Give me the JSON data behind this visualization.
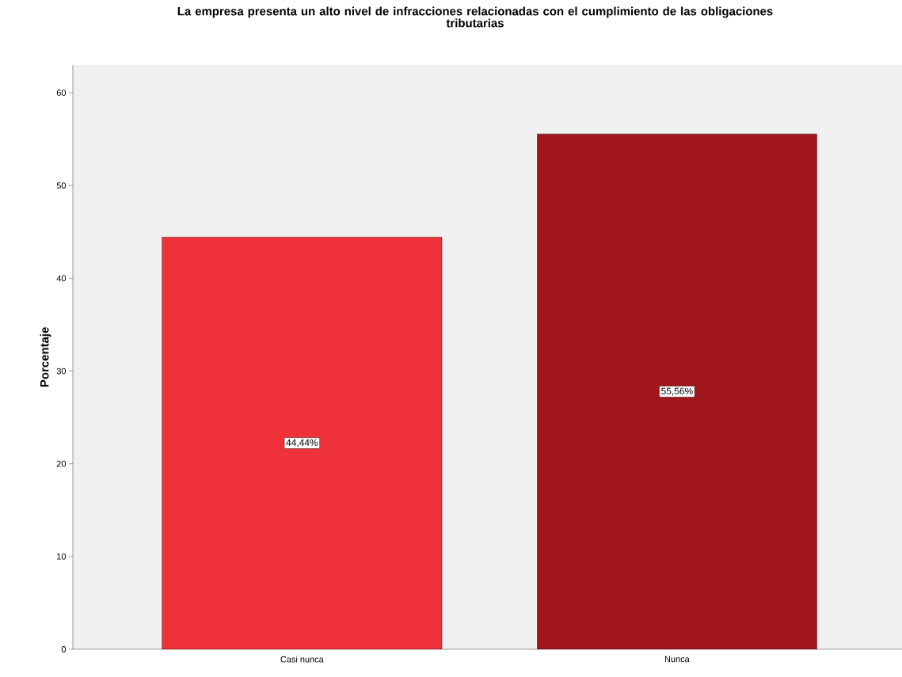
{
  "chart_data": {
    "type": "bar",
    "title": "La empresa presenta un alto nivel de infracciones relacionadas con el cumplimiento de las obligaciones tributarias",
    "ylabel": "Porcentaje",
    "categories": [
      "Casi nunca",
      "Nunca"
    ],
    "values": [
      44.44,
      55.56
    ],
    "value_labels": [
      "44,44%",
      "55,56%"
    ],
    "colors": [
      "#ef3139",
      "#a0161a"
    ],
    "ylim": [
      0,
      63
    ],
    "yticks": [
      0,
      10,
      20,
      30,
      40,
      50,
      60
    ],
    "grid": false
  }
}
